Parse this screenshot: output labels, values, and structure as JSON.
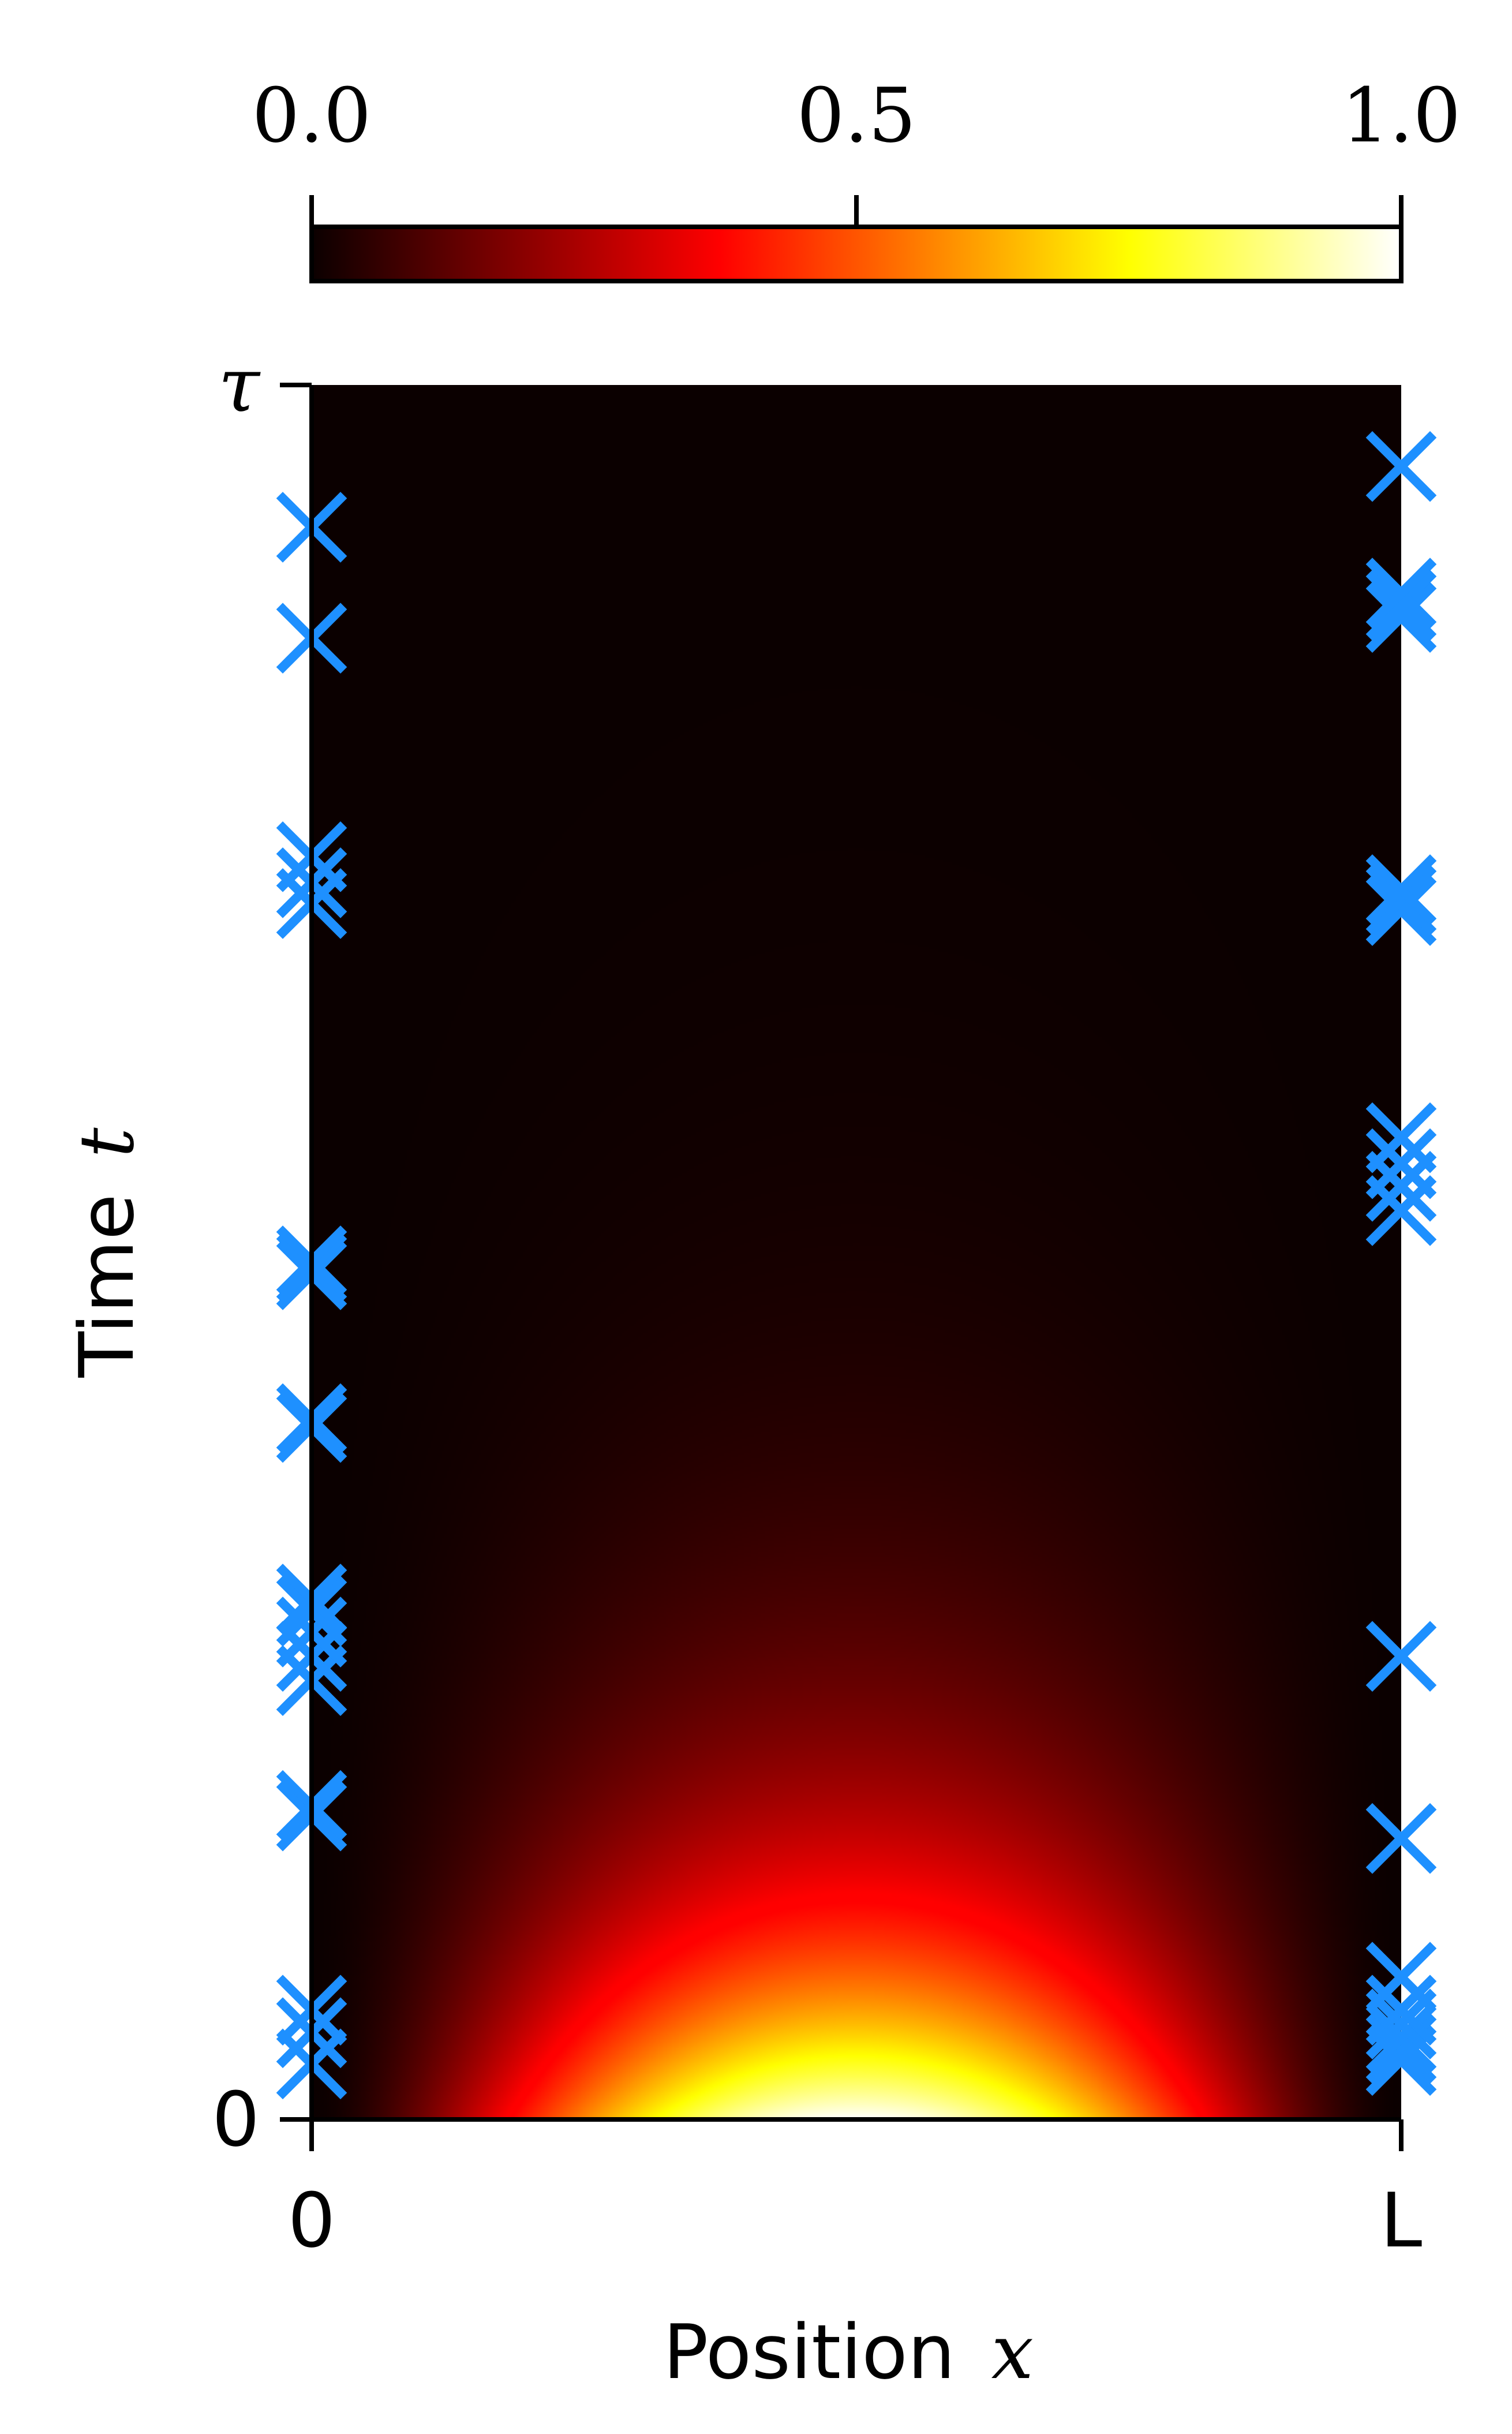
{
  "chart_data": {
    "type": "heatmap",
    "title": "",
    "xlabel": "Position",
    "xlabel_var": "x",
    "ylabel": "Time",
    "ylabel_var": "t",
    "x_ticks": [
      {
        "value": 0,
        "label": "0"
      },
      {
        "value": 1,
        "label": "L"
      }
    ],
    "y_ticks": [
      {
        "value": 0,
        "label": "0"
      },
      {
        "value": 1,
        "label": "τ"
      }
    ],
    "xlim": [
      0,
      1
    ],
    "ylim": [
      0,
      1
    ],
    "colormap": "hot",
    "colorbar": {
      "location": "top",
      "range": [
        0,
        1
      ],
      "ticks": [
        {
          "value": 0.0,
          "label": "0.0"
        },
        {
          "value": 0.5,
          "label": "0.5"
        },
        {
          "value": 1.0,
          "label": "1.0"
        }
      ]
    },
    "field_description_decay": 2.45,
    "field_spatial_exponent": 1.65,
    "marker_color": "#1e90ff",
    "marker_symbol": "x",
    "events": {
      "left_boundary_x": 0,
      "right_boundary_x": 1,
      "left_t": [
        0.032,
        0.05,
        0.063,
        0.175,
        0.181,
        0.253,
        0.267,
        0.281,
        0.293,
        0.3,
        0.399,
        0.404,
        0.487,
        0.491,
        0.495,
        0.701,
        0.713,
        0.728,
        0.854,
        0.918
      ],
      "right_t": [
        0.034,
        0.041,
        0.047,
        0.055,
        0.063,
        0.082,
        0.162,
        0.267,
        0.524,
        0.538,
        0.551,
        0.566,
        0.697,
        0.703,
        0.709,
        0.866,
        0.873,
        0.88,
        0.953
      ]
    }
  }
}
